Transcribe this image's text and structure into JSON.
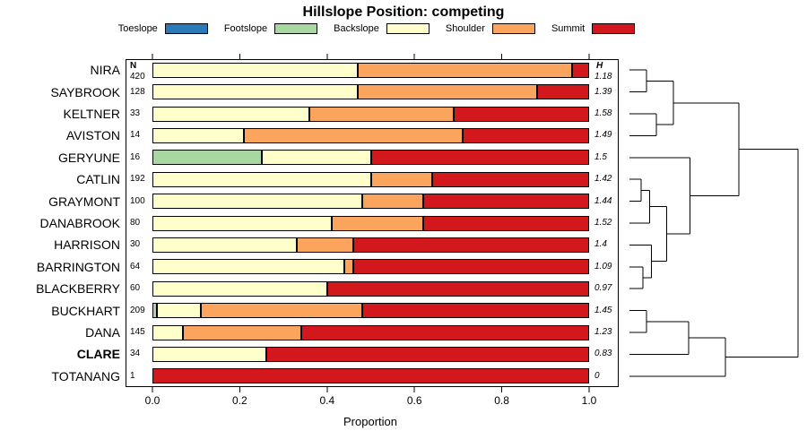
{
  "title": "Hillslope Position: competing",
  "xlabel": "Proportion",
  "columns": {
    "n_header": "N",
    "h_header": "H"
  },
  "palette": {
    "toeslope": "#2A7AB9",
    "footslope": "#A9D7A2",
    "backslope": "#FFFFCC",
    "shoulder": "#FBA45D",
    "summit": "#D2181C"
  },
  "legend": [
    {
      "label": "Toeslope",
      "class": "toeslope"
    },
    {
      "label": "Footslope",
      "class": "footslope"
    },
    {
      "label": "Backslope",
      "class": "backslope"
    },
    {
      "label": "Shoulder",
      "class": "shoulder"
    },
    {
      "label": "Summit",
      "class": "summit"
    }
  ],
  "chart_data": {
    "type": "bar",
    "orientation": "horizontal",
    "stacked": true,
    "title": "Hillslope Position: competing",
    "xlabel": "Proportion",
    "xlim": [
      0,
      1
    ],
    "x_ticks": [
      {
        "label": "0.0",
        "value": 0
      },
      {
        "label": "0.2",
        "value": 0.2
      },
      {
        "label": "0.4",
        "value": 0.4
      },
      {
        "label": "0.6",
        "value": 0.6
      },
      {
        "label": "0.8",
        "value": 0.8
      },
      {
        "label": "1.0",
        "value": 1.0
      }
    ],
    "rows": [
      {
        "name": "NIRA",
        "n": "420",
        "h": "1.18",
        "segments": [
          {
            "class": "backslope",
            "p": 0.47
          },
          {
            "class": "shoulder",
            "p": 0.49
          },
          {
            "class": "summit",
            "p": 0.04
          }
        ]
      },
      {
        "name": "SAYBROOK",
        "n": "128",
        "h": "1.39",
        "segments": [
          {
            "class": "backslope",
            "p": 0.47
          },
          {
            "class": "shoulder",
            "p": 0.41
          },
          {
            "class": "summit",
            "p": 0.12
          }
        ]
      },
      {
        "name": "KELTNER",
        "n": "33",
        "h": "1.58",
        "segments": [
          {
            "class": "backslope",
            "p": 0.36
          },
          {
            "class": "shoulder",
            "p": 0.33
          },
          {
            "class": "summit",
            "p": 0.31
          }
        ]
      },
      {
        "name": "AVISTON",
        "n": "14",
        "h": "1.49",
        "segments": [
          {
            "class": "backslope",
            "p": 0.21
          },
          {
            "class": "shoulder",
            "p": 0.5
          },
          {
            "class": "summit",
            "p": 0.29
          }
        ]
      },
      {
        "name": "GERYUNE",
        "n": "16",
        "h": "1.5",
        "segments": [
          {
            "class": "footslope",
            "p": 0.25
          },
          {
            "class": "backslope",
            "p": 0.25
          },
          {
            "class": "summit",
            "p": 0.5
          }
        ]
      },
      {
        "name": "CATLIN",
        "n": "192",
        "h": "1.42",
        "segments": [
          {
            "class": "backslope",
            "p": 0.5
          },
          {
            "class": "shoulder",
            "p": 0.14
          },
          {
            "class": "summit",
            "p": 0.36
          }
        ]
      },
      {
        "name": "GRAYMONT",
        "n": "100",
        "h": "1.44",
        "segments": [
          {
            "class": "backslope",
            "p": 0.48
          },
          {
            "class": "shoulder",
            "p": 0.14
          },
          {
            "class": "summit",
            "p": 0.38
          }
        ]
      },
      {
        "name": "DANABROOK",
        "n": "80",
        "h": "1.52",
        "segments": [
          {
            "class": "backslope",
            "p": 0.41
          },
          {
            "class": "shoulder",
            "p": 0.21
          },
          {
            "class": "summit",
            "p": 0.38
          }
        ]
      },
      {
        "name": "HARRISON",
        "n": "30",
        "h": "1.4",
        "segments": [
          {
            "class": "backslope",
            "p": 0.33
          },
          {
            "class": "shoulder",
            "p": 0.13
          },
          {
            "class": "summit",
            "p": 0.54
          }
        ]
      },
      {
        "name": "BARRINGTON",
        "n": "64",
        "h": "1.09",
        "segments": [
          {
            "class": "backslope",
            "p": 0.44
          },
          {
            "class": "shoulder",
            "p": 0.02
          },
          {
            "class": "summit",
            "p": 0.54
          }
        ]
      },
      {
        "name": "BLACKBERRY",
        "n": "60",
        "h": "0.97",
        "segments": [
          {
            "class": "backslope",
            "p": 0.4
          },
          {
            "class": "summit",
            "p": 0.6
          }
        ]
      },
      {
        "name": "BUCKHART",
        "n": "209",
        "h": "1.45",
        "segments": [
          {
            "class": "footslope",
            "p": 0.01
          },
          {
            "class": "backslope",
            "p": 0.1
          },
          {
            "class": "shoulder",
            "p": 0.37
          },
          {
            "class": "summit",
            "p": 0.52
          }
        ]
      },
      {
        "name": "DANA",
        "n": "145",
        "h": "1.23",
        "segments": [
          {
            "class": "backslope",
            "p": 0.07
          },
          {
            "class": "shoulder",
            "p": 0.27
          },
          {
            "class": "summit",
            "p": 0.66
          }
        ]
      },
      {
        "name": "CLARE",
        "n": "34",
        "h": "0.83",
        "bold": true,
        "segments": [
          {
            "class": "backslope",
            "p": 0.26
          },
          {
            "class": "summit",
            "p": 0.74
          }
        ]
      },
      {
        "name": "TOTANANG",
        "n": "1",
        "h": "0",
        "segments": [
          {
            "class": "summit",
            "p": 1.0
          }
        ]
      }
    ],
    "dendrogram": {
      "h": 1.0,
      "children": [
        {
          "h": 0.65,
          "children": [
            {
              "h": 0.26,
              "children": [
                {
                  "h": 0.1,
                  "children": [
                    {
                      "leaf": 0
                    },
                    {
                      "leaf": 1
                    }
                  ]
                },
                {
                  "h": 0.16,
                  "children": [
                    {
                      "leaf": 2
                    },
                    {
                      "leaf": 3
                    }
                  ]
                }
              ]
            },
            {
              "h": 0.36,
              "children": [
                {
                  "leaf": 4
                },
                {
                  "h": 0.22,
                  "children": [
                    {
                      "h": 0.12,
                      "children": [
                        {
                          "h": 0.07,
                          "children": [
                            {
                              "leaf": 5
                            },
                            {
                              "leaf": 6
                            }
                          ]
                        },
                        {
                          "leaf": 7
                        }
                      ]
                    },
                    {
                      "h": 0.13,
                      "children": [
                        {
                          "leaf": 8
                        },
                        {
                          "h": 0.08,
                          "children": [
                            {
                              "leaf": 9
                            },
                            {
                              "leaf": 10
                            }
                          ]
                        }
                      ]
                    }
                  ]
                }
              ]
            }
          ]
        },
        {
          "h": 0.57,
          "children": [
            {
              "h": 0.35,
              "children": [
                {
                  "h": 0.1,
                  "children": [
                    {
                      "leaf": 11
                    },
                    {
                      "leaf": 12
                    }
                  ]
                },
                {
                  "leaf": 13
                }
              ]
            },
            {
              "leaf": 14
            }
          ]
        }
      ]
    }
  }
}
